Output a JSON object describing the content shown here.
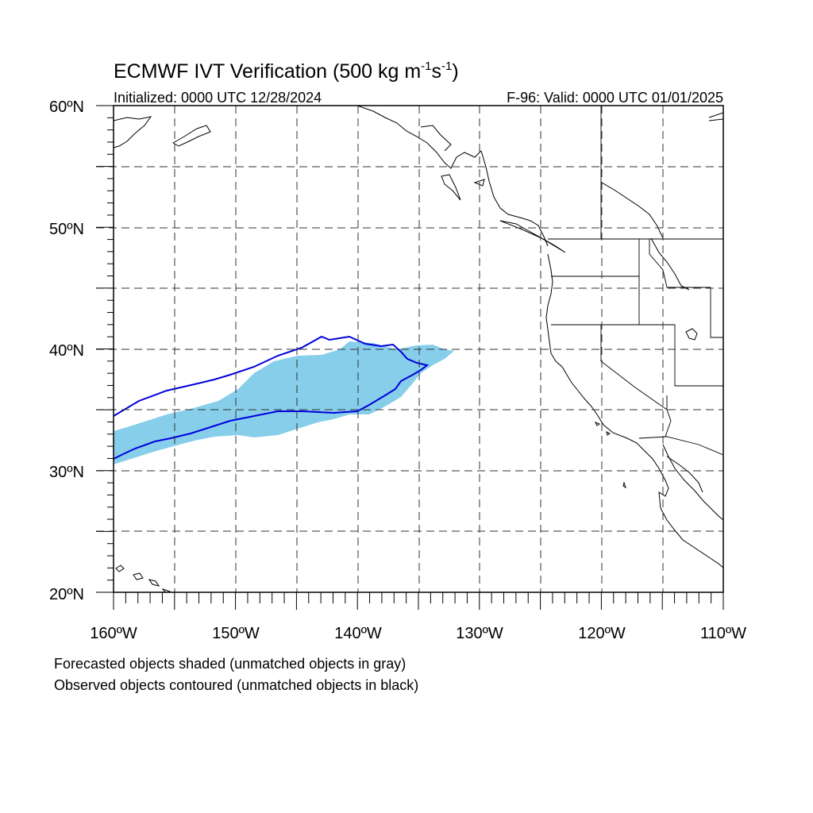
{
  "title": {
    "main": "ECMWF IVT Verification (500 kg m",
    "exp1": "-1",
    "mid": "s",
    "exp2": "-1",
    "close": ")"
  },
  "initialized": "Initialized: 0000 UTC 12/28/2024",
  "valid": "F-96: Valid: 0000 UTC 01/01/2025",
  "lat_labels": [
    "60ºN",
    "50ºN",
    "40ºN",
    "30ºN",
    "20ºN"
  ],
  "lon_labels": [
    "160ºW",
    "150ºW",
    "140ºW",
    "130ºW",
    "120ºW",
    "110ºW"
  ],
  "notes": {
    "forecast": "Forecasted objects shaded (unmatched objects in gray)",
    "observed": "Observed objects contoured (unmatched objects in black)"
  },
  "colors": {
    "forecast_fill": "#87ceeb",
    "observed_contour": "#0000dd",
    "coast": "#000000"
  },
  "map": {
    "lon_range": [
      -160,
      -110
    ],
    "lat_range": [
      20,
      60
    ],
    "grid": "dashed every 5 degrees"
  }
}
